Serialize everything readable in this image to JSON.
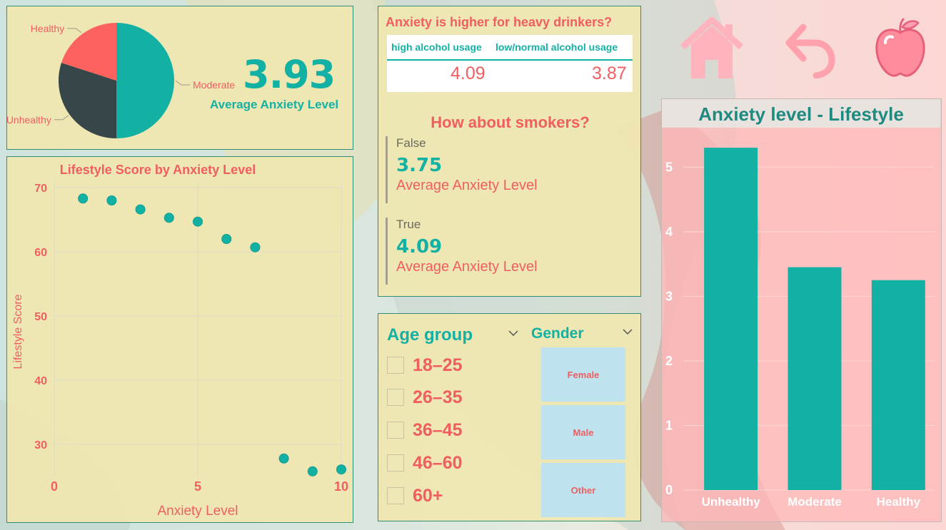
{
  "colors": {
    "teal": "#13b1a4",
    "coral": "#f05e60",
    "dark": "#374649",
    "pink_icon": "#ffb3bd",
    "panel_yellow": "#f0e7b0"
  },
  "pie": {
    "slices": [
      {
        "label": "Moderate",
        "value": 50,
        "color": "#13b1a4"
      },
      {
        "label": "Unhealthy",
        "value": 30,
        "color": "#374649"
      },
      {
        "label": "Healthy",
        "value": 20,
        "color": "#fd625e"
      }
    ]
  },
  "kpi": {
    "value": "3.93",
    "caption": "Average Anxiety Level"
  },
  "alcohol": {
    "title": "Anxiety is higher for heavy drinkers?",
    "col1_header": "high alcohol usage",
    "col2_header": "low/normal alcohol usage",
    "col1_value": "4.09",
    "col2_value": "3.87"
  },
  "smokers": {
    "title": "How about smokers?",
    "cards": [
      {
        "label": "False",
        "value": "3.75",
        "caption": "Average Anxiety Level"
      },
      {
        "label": "True",
        "value": "4.09",
        "caption": "Average Anxiety Level"
      }
    ]
  },
  "slicers": {
    "age_title": "Age group",
    "age_items": [
      "18–25",
      "26–35",
      "36–45",
      "46–60",
      "60+"
    ],
    "gender_title": "Gender",
    "gender_items": [
      "Female",
      "Male",
      "Other"
    ]
  },
  "nav": {
    "icons": [
      "home-icon",
      "back-arrow-icon",
      "apple-icon"
    ]
  },
  "chart_data": [
    {
      "type": "pie",
      "title": "",
      "categories": [
        "Moderate",
        "Unhealthy",
        "Healthy"
      ],
      "values": [
        50,
        30,
        20
      ]
    },
    {
      "type": "scatter",
      "title": "Lifestyle Score by Anxiety Level",
      "xlabel": "Anxiety Level",
      "ylabel": "Lifestyle Score",
      "xlim": [
        0,
        10
      ],
      "ylim": [
        25,
        71
      ],
      "xticks": [
        "0",
        "5",
        "10"
      ],
      "yticks": [
        "30",
        "40",
        "50",
        "60",
        "70"
      ],
      "grid": true,
      "points": [
        {
          "x": 1,
          "y": 68.3
        },
        {
          "x": 2,
          "y": 68.0
        },
        {
          "x": 3,
          "y": 66.6
        },
        {
          "x": 4,
          "y": 65.3
        },
        {
          "x": 5,
          "y": 64.7
        },
        {
          "x": 6,
          "y": 62.0
        },
        {
          "x": 7,
          "y": 60.7
        },
        {
          "x": 8,
          "y": 27.8
        },
        {
          "x": 9,
          "y": 25.8
        },
        {
          "x": 10,
          "y": 26.1
        }
      ]
    },
    {
      "type": "bar",
      "title": "Anxiety level - Lifestyle",
      "categories": [
        "Unhealthy",
        "Moderate",
        "Healthy"
      ],
      "values": [
        5.3,
        3.45,
        3.25
      ],
      "ylim": [
        0,
        5.5
      ],
      "yticks": [
        "0",
        "1",
        "2",
        "3",
        "4",
        "5"
      ],
      "grid": true
    }
  ]
}
